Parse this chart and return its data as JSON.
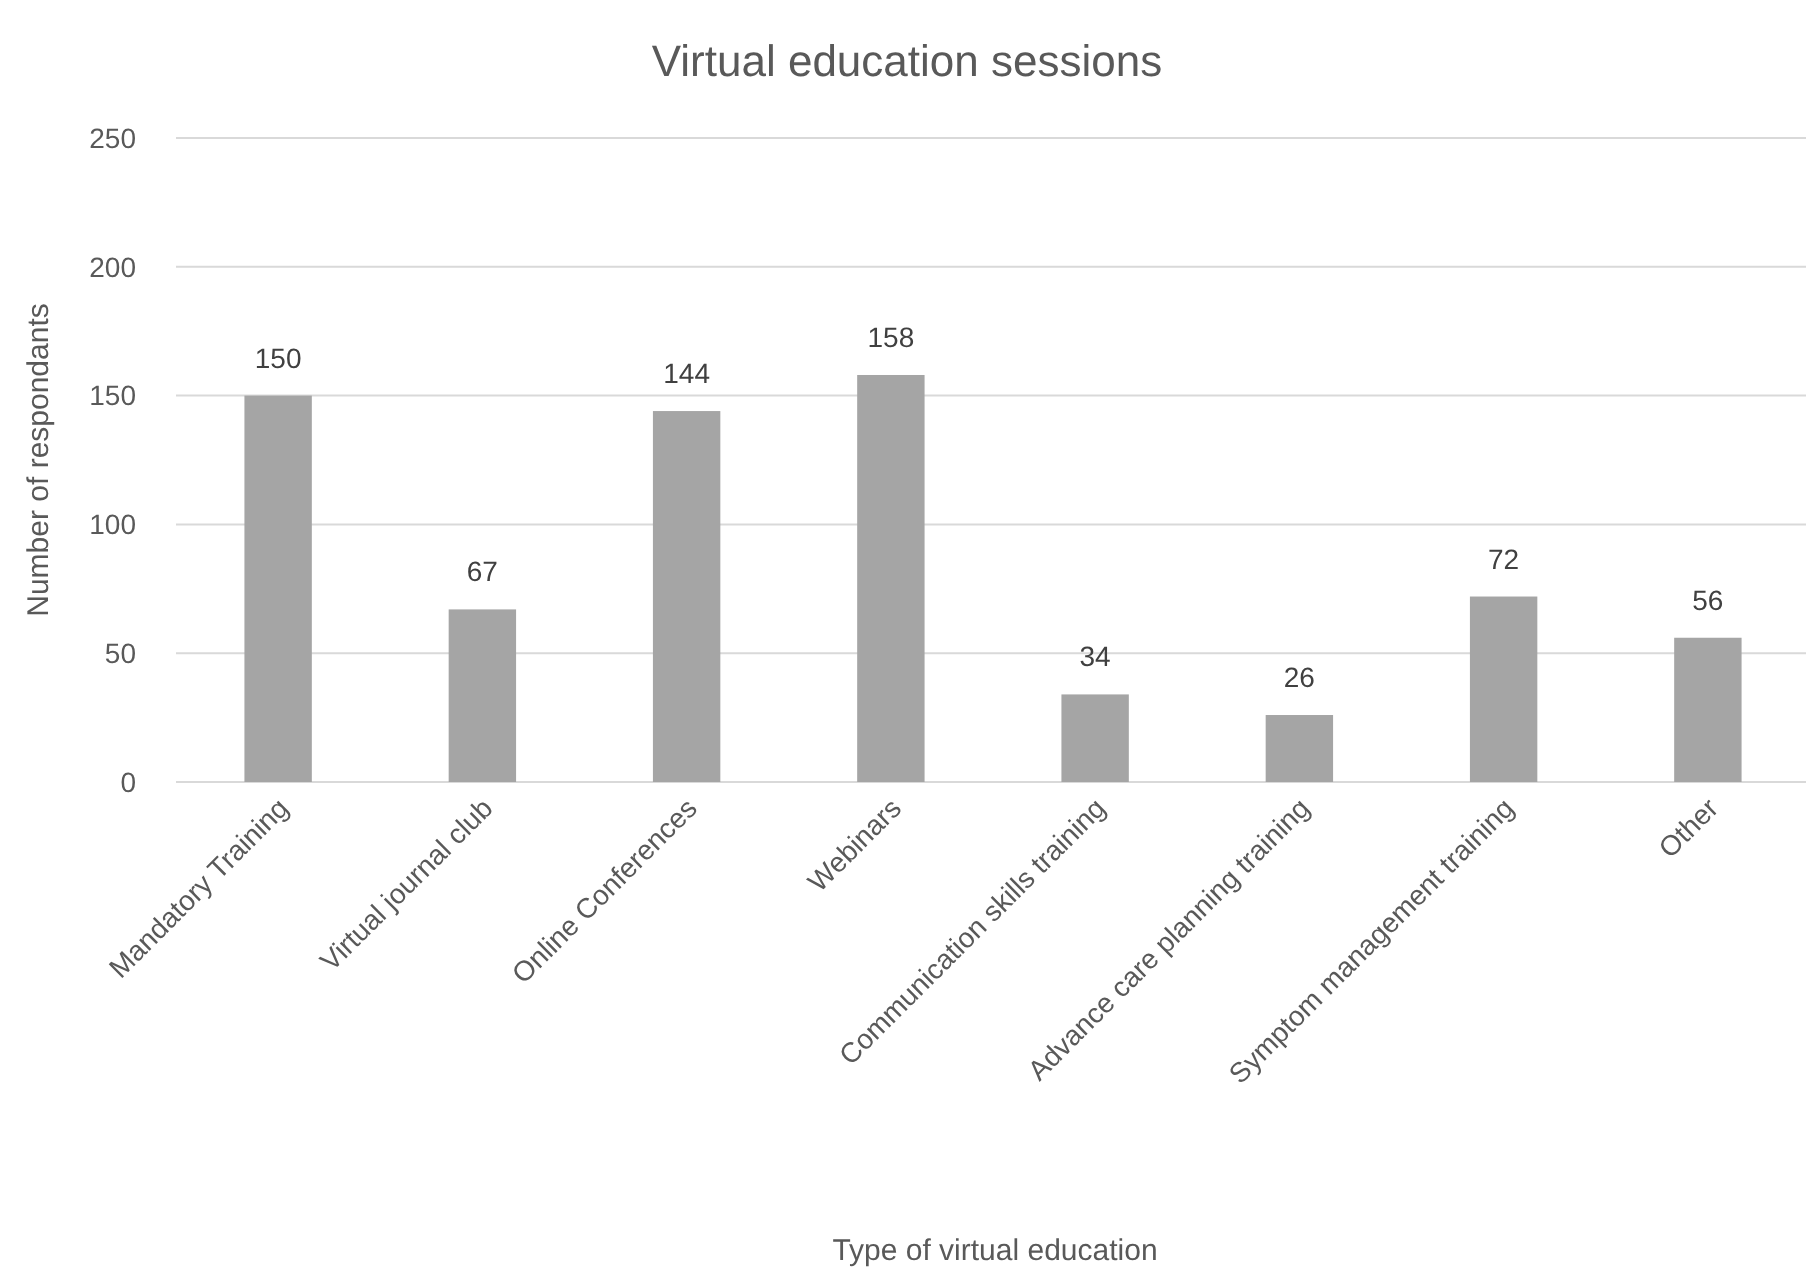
{
  "chart_data": {
    "type": "bar",
    "title": "Virtual education sessions",
    "xlabel": "Type of virtual education",
    "ylabel": "Number of respondants",
    "categories": [
      "Mandatory Training",
      "Virtual journal club",
      "Online Conferences",
      "Webinars",
      "Communication skills training",
      "Advance care planning training",
      "Symptom management training",
      "Other"
    ],
    "values": [
      150,
      67,
      144,
      158,
      34,
      26,
      72,
      56
    ],
    "color": "#a5a5a5",
    "ylim": [
      0,
      250
    ],
    "yticks": [
      0,
      50,
      100,
      150,
      200,
      250
    ],
    "grid": "y",
    "data_labels": true
  }
}
